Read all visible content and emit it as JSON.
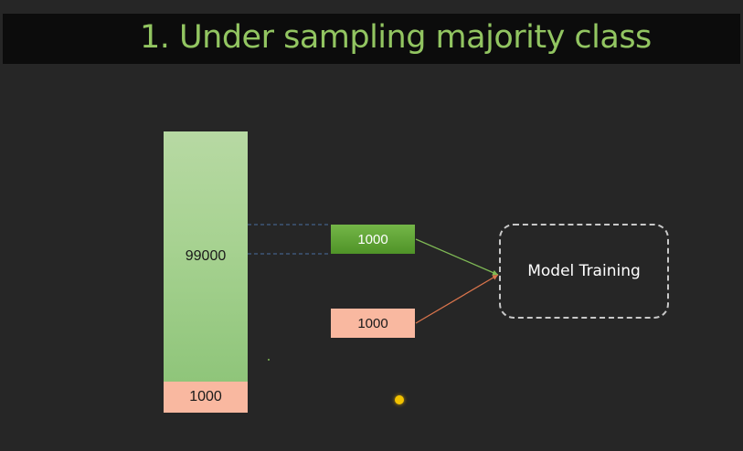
{
  "title": "1. Under sampling majority class",
  "diagram": {
    "majority_bar": {
      "label": "99000",
      "color": "#a7d291"
    },
    "minority_bar": {
      "label": "1000",
      "color": "#f9b8a0"
    },
    "sampled_majority": {
      "label": "1000",
      "color": "#5ea235"
    },
    "sampled_minority": {
      "label": "1000",
      "color": "#f9b8a0"
    },
    "target": {
      "label": "Model Training"
    }
  },
  "colors": {
    "background": "#262626",
    "title_bar": "#0c0c0c",
    "title_text": "#92c561",
    "green_arrow": "#7fb955",
    "salmon_arrow": "#d9744c",
    "guide_lines": "#4a6fa0",
    "pointer": "#f2c200"
  }
}
